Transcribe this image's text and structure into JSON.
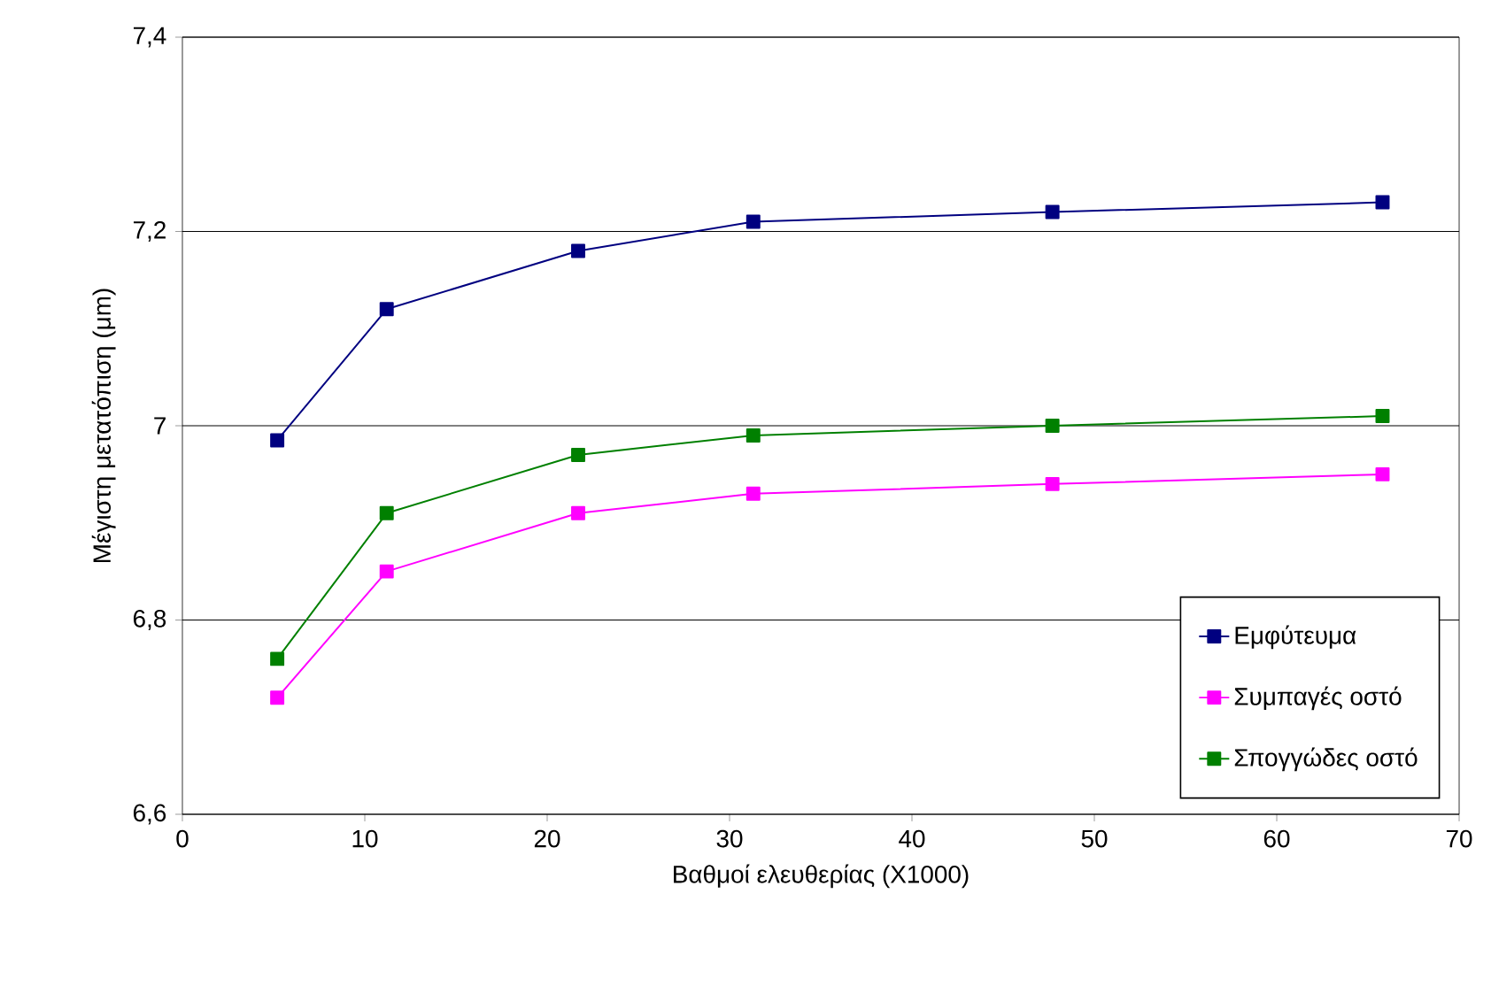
{
  "chart_data": {
    "type": "line",
    "xlabel": "Βαθμοί ελευθερίας (Χ1000)",
    "ylabel": "Μέγιστη μετατόπιση (μm)",
    "x": [
      5.2,
      11.2,
      21.7,
      31.3,
      47.7,
      65.8
    ],
    "series": [
      {
        "name": "Εμφύτευμα",
        "color": "#000080",
        "values": [
          6.985,
          7.12,
          7.18,
          7.21,
          7.22,
          7.23
        ]
      },
      {
        "name": "Συμπαγές οστό",
        "color": "#ff00ff",
        "values": [
          6.72,
          6.85,
          6.91,
          6.93,
          6.94,
          6.95
        ]
      },
      {
        "name": "Σπογγώδες οστό",
        "color": "#008000",
        "values": [
          6.76,
          6.91,
          6.97,
          6.99,
          7.0,
          7.01
        ]
      }
    ],
    "xlim": [
      0,
      70
    ],
    "xticks": [
      0,
      10,
      20,
      30,
      40,
      50,
      60,
      70
    ],
    "ylim": [
      6.6,
      7.4
    ],
    "yticks": [
      {
        "value": 6.6,
        "label": "6,6"
      },
      {
        "value": 6.8,
        "label": "6,8"
      },
      {
        "value": 7,
        "label": "7"
      },
      {
        "value": 7.2,
        "label": "7,2"
      },
      {
        "value": 7.4,
        "label": "7,4"
      }
    ],
    "grid": "y",
    "legend": "bottom right",
    "marker": "square",
    "line_style": "solid"
  }
}
